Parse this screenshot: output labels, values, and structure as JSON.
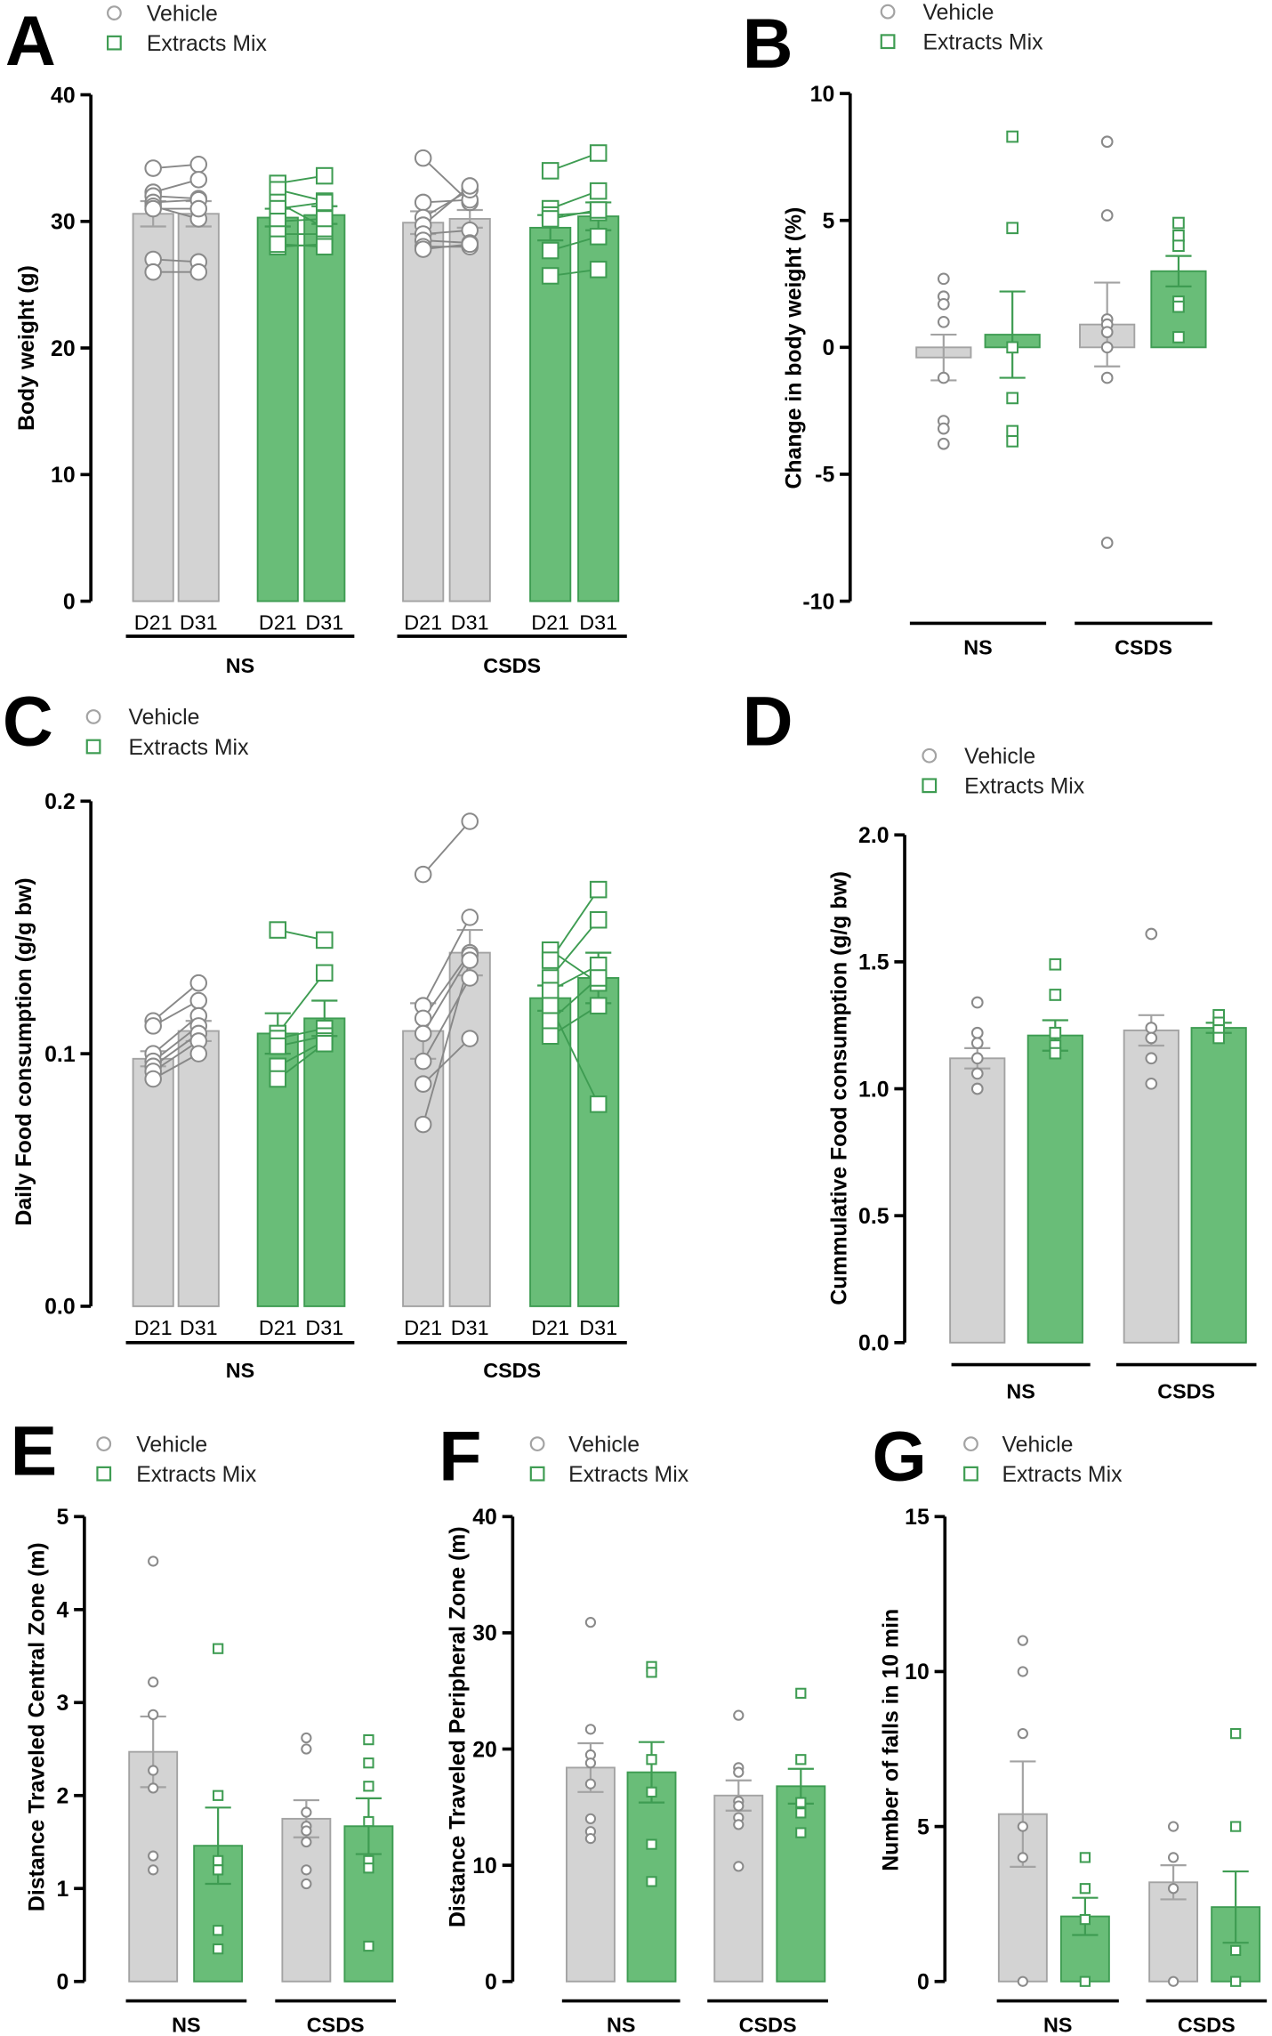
{
  "colors": {
    "vehicle_fill": "#d3d3d3",
    "vehicle_stroke": "#a3a3a3",
    "extract_fill": "#69bd78",
    "extract_stroke": "#3e9c52",
    "axis": "#000000"
  },
  "chart_data": [
    {
      "panel": "A",
      "type": "bar",
      "paired": true,
      "legend": [
        "Vehicle",
        "Extracts Mix"
      ],
      "ylabel": "Body weight (g)",
      "ylim": [
        0,
        40
      ],
      "yticks": [
        "0",
        "10",
        "20",
        "30",
        "40"
      ],
      "groups": [
        "NS",
        "CSDS"
      ],
      "x_sublabels": [
        "D21",
        "D31",
        "D21",
        "D31",
        "D21",
        "D31",
        "D21",
        "D31"
      ],
      "series": [
        {
          "treatment": "Vehicle",
          "group": "NS",
          "day": "D21",
          "mean": 30.6,
          "sem": 1.0,
          "points": [
            34.2,
            32.3,
            32.0,
            31.5,
            31.2,
            31.0,
            27.0,
            26.0
          ]
        },
        {
          "treatment": "Vehicle",
          "group": "NS",
          "day": "D31",
          "mean": 30.6,
          "sem": 1.0,
          "points": [
            34.5,
            33.3,
            31.8,
            31.7,
            30.2,
            31.0,
            26.8,
            26.0
          ]
        },
        {
          "treatment": "Extracts Mix",
          "group": "NS",
          "day": "D21",
          "mean": 30.3,
          "sem": 0.7,
          "points": [
            33.0,
            32.5,
            31.5,
            31.0,
            30.0,
            29.0,
            28.0,
            28.2
          ]
        },
        {
          "treatment": "Extracts Mix",
          "group": "NS",
          "day": "D31",
          "mean": 30.5,
          "sem": 0.7,
          "points": [
            33.6,
            31.6,
            29.5,
            31.5,
            30.2,
            29.0,
            28.2,
            28.0
          ]
        },
        {
          "treatment": "Vehicle",
          "group": "CSDS",
          "day": "D21",
          "mean": 29.9,
          "sem": 0.9,
          "points": [
            35.0,
            31.5,
            30.3,
            29.7,
            29.0,
            28.5,
            28.0,
            27.8
          ]
        },
        {
          "treatment": "Vehicle",
          "group": "CSDS",
          "day": "D31",
          "mean": 30.2,
          "sem": 0.7,
          "points": [
            31.5,
            31.7,
            32.5,
            32.8,
            29.3,
            28.3,
            28.0,
            28.2
          ]
        },
        {
          "treatment": "Extracts Mix",
          "group": "CSDS",
          "day": "D21",
          "mean": 29.5,
          "sem": 1.0,
          "points": [
            34.0,
            31.0,
            30.5,
            30.2,
            27.7,
            25.7
          ]
        },
        {
          "treatment": "Extracts Mix",
          "group": "CSDS",
          "day": "D31",
          "mean": 30.4,
          "sem": 1.1,
          "points": [
            35.4,
            32.4,
            30.7,
            30.9,
            28.8,
            26.2
          ]
        }
      ]
    },
    {
      "panel": "B",
      "type": "bar",
      "paired": false,
      "legend": [
        "Vehicle",
        "Extracts Mix"
      ],
      "ylabel": "Change in body weight (%)",
      "ylim": [
        -10,
        10
      ],
      "yticks": [
        "-10",
        "-5",
        "0",
        "5",
        "10"
      ],
      "groups": [
        "NS",
        "CSDS"
      ],
      "x_sublabels": [],
      "series": [
        {
          "treatment": "Vehicle",
          "group": "NS",
          "mean": -0.4,
          "sem": 0.9,
          "points": [
            2.7,
            2.0,
            1.7,
            1.0,
            -1.2,
            -2.9,
            -3.2,
            -3.8
          ]
        },
        {
          "treatment": "Extracts Mix",
          "group": "NS",
          "mean": 0.5,
          "sem": 1.7,
          "points": [
            8.3,
            4.7,
            0.0,
            -2.0,
            -3.3,
            -3.7
          ]
        },
        {
          "treatment": "Vehicle",
          "group": "CSDS",
          "mean": 0.9,
          "sem": 1.65,
          "points": [
            8.1,
            5.2,
            1.1,
            0.9,
            0.6,
            0.0,
            -1.2,
            -7.7
          ]
        },
        {
          "treatment": "Extracts Mix",
          "group": "CSDS",
          "mean": 3.0,
          "sem": 0.6,
          "points": [
            4.9,
            4.4,
            4.0,
            1.8,
            1.6,
            0.4
          ]
        }
      ]
    },
    {
      "panel": "C",
      "type": "bar",
      "paired": true,
      "legend": [
        "Vehicle",
        "Extracts  Mix"
      ],
      "ylabel": "Daily Food consumption (g/g bw)",
      "ylim": [
        0,
        0.2
      ],
      "yticks": [
        "0.0",
        "0.1",
        "0.2"
      ],
      "groups": [
        "NS",
        "CSDS"
      ],
      "x_sublabels": [
        "D21",
        "D31",
        "D21",
        "D31",
        "D21",
        "D31",
        "D21",
        "D31"
      ],
      "series": [
        {
          "treatment": "Vehicle",
          "group": "NS",
          "day": "D21",
          "mean": 0.098,
          "sem": 0.003,
          "points": [
            0.113,
            0.111,
            0.1,
            0.097,
            0.095,
            0.093,
            0.09
          ]
        },
        {
          "treatment": "Vehicle",
          "group": "NS",
          "day": "D31",
          "mean": 0.109,
          "sem": 0.004,
          "points": [
            0.128,
            0.121,
            0.115,
            0.111,
            0.108,
            0.105,
            0.1
          ]
        },
        {
          "treatment": "Extracts Mix",
          "group": "NS",
          "day": "D21",
          "mean": 0.108,
          "sem": 0.008,
          "points": [
            0.149,
            0.108,
            0.106,
            0.103,
            0.095,
            0.09
          ]
        },
        {
          "treatment": "Extracts Mix",
          "group": "NS",
          "day": "D31",
          "mean": 0.114,
          "sem": 0.007,
          "points": [
            0.145,
            0.132,
            0.11,
            0.107,
            0.105,
            0.104
          ]
        },
        {
          "treatment": "Vehicle",
          "group": "CSDS",
          "day": "D21",
          "mean": 0.109,
          "sem": 0.011,
          "points": [
            0.171,
            0.119,
            0.114,
            0.108,
            0.097,
            0.088,
            0.072
          ]
        },
        {
          "treatment": "Vehicle",
          "group": "CSDS",
          "day": "D31",
          "mean": 0.14,
          "sem": 0.009,
          "points": [
            0.192,
            0.154,
            0.14,
            0.139,
            0.13,
            0.106,
            0.137
          ]
        },
        {
          "treatment": "Extracts Mix",
          "group": "CSDS",
          "day": "D21",
          "mean": 0.122,
          "sem": 0.005,
          "points": [
            0.141,
            0.137,
            0.13,
            0.125,
            0.119,
            0.113,
            0.107
          ]
        },
        {
          "treatment": "Extracts Mix",
          "group": "CSDS",
          "day": "D31",
          "mean": 0.13,
          "sem": 0.01,
          "points": [
            0.128,
            0.165,
            0.153,
            0.135,
            0.08,
            0.13,
            0.119
          ]
        }
      ]
    },
    {
      "panel": "D",
      "type": "bar",
      "paired": false,
      "legend": [
        "Vehicle",
        "Extracts Mix"
      ],
      "ylabel": "Cummulative Food consumption (g/g bw)",
      "ylim": [
        0,
        2.0
      ],
      "yticks": [
        "0.0",
        "0.5",
        "1.0",
        "1.5",
        "2.0"
      ],
      "groups": [
        "NS",
        "CSDS"
      ],
      "x_sublabels": [],
      "series": [
        {
          "treatment": "Vehicle",
          "group": "NS",
          "mean": 1.12,
          "sem": 0.04,
          "points": [
            1.34,
            1.22,
            1.18,
            1.12,
            1.06,
            1.0
          ]
        },
        {
          "treatment": "Extracts Mix",
          "group": "NS",
          "mean": 1.21,
          "sem": 0.06,
          "points": [
            1.49,
            1.37,
            1.22,
            1.17,
            1.14
          ]
        },
        {
          "treatment": "Vehicle",
          "group": "CSDS",
          "mean": 1.23,
          "sem": 0.06,
          "points": [
            1.61,
            1.24,
            1.2,
            1.12,
            1.02
          ]
        },
        {
          "treatment": "Extracts Mix",
          "group": "CSDS",
          "mean": 1.24,
          "sem": 0.02,
          "points": [
            1.29,
            1.26,
            1.23,
            1.2
          ]
        }
      ]
    },
    {
      "panel": "E",
      "type": "bar",
      "paired": false,
      "legend": [
        "Vehicle",
        "Extracts Mix"
      ],
      "ylabel": "Distance Traveled Central Zone (m)",
      "ylim": [
        0,
        5
      ],
      "yticks": [
        "0",
        "1",
        "2",
        "3",
        "4",
        "5"
      ],
      "groups": [
        "NS",
        "CSDS"
      ],
      "x_sublabels": [],
      "series": [
        {
          "treatment": "Vehicle",
          "group": "NS",
          "mean": 2.47,
          "sem": 0.38,
          "points": [
            4.52,
            3.22,
            2.87,
            2.27,
            2.08,
            1.35,
            1.2
          ]
        },
        {
          "treatment": "Extracts Mix",
          "group": "NS",
          "mean": 1.46,
          "sem": 0.41,
          "points": [
            3.58,
            2.0,
            1.3,
            1.2,
            0.55,
            0.35
          ]
        },
        {
          "treatment": "Vehicle",
          "group": "CSDS",
          "mean": 1.75,
          "sem": 0.2,
          "points": [
            2.62,
            2.5,
            1.82,
            1.67,
            1.62,
            1.5,
            1.2,
            1.05
          ]
        },
        {
          "treatment": "Extracts Mix",
          "group": "CSDS",
          "mean": 1.67,
          "sem": 0.3,
          "points": [
            2.6,
            2.35,
            2.1,
            1.72,
            1.3,
            1.22,
            0.38
          ]
        }
      ]
    },
    {
      "panel": "F",
      "type": "bar",
      "paired": false,
      "legend": [
        "Vehicle",
        "Extracts Mix"
      ],
      "ylabel": "Distance Traveled Peripheral Zone (m)",
      "ylim": [
        0,
        40
      ],
      "yticks": [
        "0",
        "10",
        "20",
        "30",
        "40"
      ],
      "groups": [
        "NS",
        "CSDS"
      ],
      "x_sublabels": [],
      "series": [
        {
          "treatment": "Vehicle",
          "group": "NS",
          "mean": 18.4,
          "sem": 2.1,
          "points": [
            30.9,
            21.7,
            19.5,
            18.8,
            17.0,
            14.0,
            12.9,
            12.3
          ]
        },
        {
          "treatment": "Extracts Mix",
          "group": "NS",
          "mean": 18.0,
          "sem": 2.6,
          "points": [
            27.1,
            26.6,
            19.1,
            16.3,
            11.8,
            8.6
          ]
        },
        {
          "treatment": "Vehicle",
          "group": "CSDS",
          "mean": 16.0,
          "sem": 1.3,
          "points": [
            22.9,
            18.4,
            18.0,
            15.5,
            15.1,
            14.1,
            13.5,
            9.9
          ]
        },
        {
          "treatment": "Extracts Mix",
          "group": "CSDS",
          "mean": 16.8,
          "sem": 1.5,
          "points": [
            24.8,
            19.1,
            15.4,
            14.5,
            12.8
          ]
        }
      ]
    },
    {
      "panel": "G",
      "type": "bar",
      "paired": false,
      "legend": [
        "Vehicle",
        "Extracts Mix"
      ],
      "ylabel": "Number of falls in 10 min",
      "ylim": [
        0,
        15
      ],
      "yticks": [
        "0",
        "5",
        "10",
        "15"
      ],
      "groups": [
        "NS",
        "CSDS"
      ],
      "x_sublabels": [],
      "series": [
        {
          "treatment": "Vehicle",
          "group": "NS",
          "mean": 5.4,
          "sem": 1.7,
          "points": [
            11,
            10,
            8,
            5,
            4,
            0
          ]
        },
        {
          "treatment": "Extracts Mix",
          "group": "NS",
          "mean": 2.1,
          "sem": 0.6,
          "points": [
            4,
            3,
            2,
            0
          ]
        },
        {
          "treatment": "Vehicle",
          "group": "CSDS",
          "mean": 3.2,
          "sem": 0.55,
          "points": [
            5,
            4,
            3,
            0
          ]
        },
        {
          "treatment": "Extracts Mix",
          "group": "CSDS",
          "mean": 2.4,
          "sem": 1.15,
          "points": [
            8,
            5,
            1,
            0
          ]
        }
      ]
    }
  ]
}
